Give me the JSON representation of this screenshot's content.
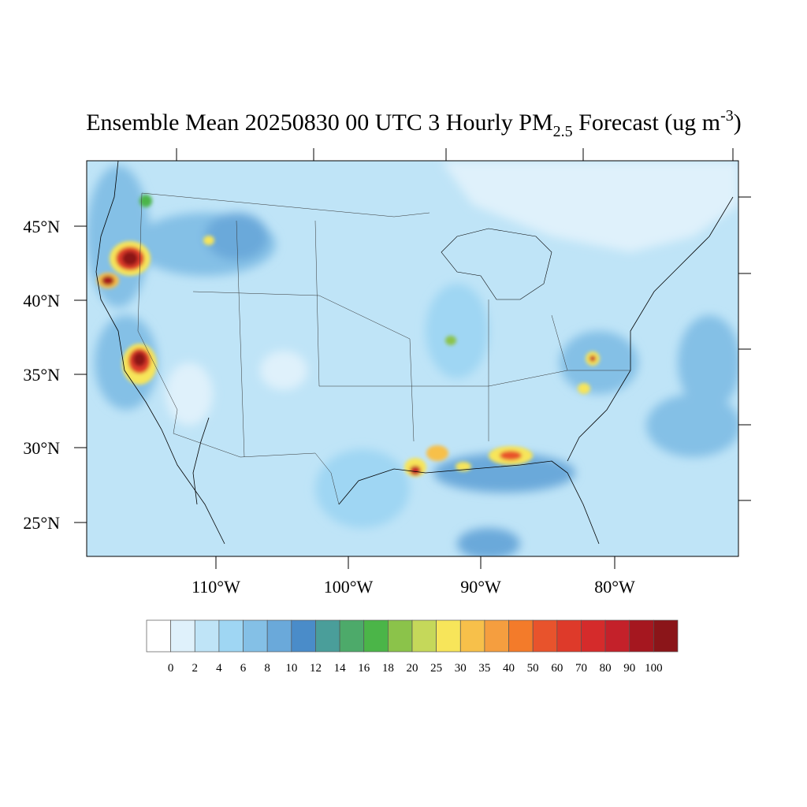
{
  "title": {
    "text": "Ensemble Mean 20250830 00 UTC 3 Hourly PM",
    "subscript": "2.5",
    "text2": " Forecast (ug m",
    "superscript": "-3",
    "text3": ")"
  },
  "map": {
    "lat_labels": [
      "45°N",
      "40°N",
      "35°N",
      "30°N",
      "25°N"
    ],
    "lon_labels": [
      "110°W",
      "100°W",
      "90°W",
      "80°W"
    ]
  },
  "colorbar": {
    "colors": [
      "#ffffff",
      "#dff1fb",
      "#bfe4f7",
      "#9fd6f3",
      "#84c0e6",
      "#6aa9da",
      "#4a8cc9",
      "#4a9e9a",
      "#4daa6a",
      "#4bb548",
      "#8bc34a",
      "#c5d85a",
      "#f7e55a",
      "#f7c04a",
      "#f59e3f",
      "#f37b2a",
      "#e8532c",
      "#de3a2a",
      "#d52b2b",
      "#c4212a",
      "#a5171f",
      "#8b1519"
    ],
    "labels": [
      0,
      2,
      4,
      6,
      8,
      10,
      12,
      14,
      16,
      18,
      20,
      25,
      30,
      35,
      40,
      50,
      60,
      70,
      80,
      90,
      100
    ]
  }
}
